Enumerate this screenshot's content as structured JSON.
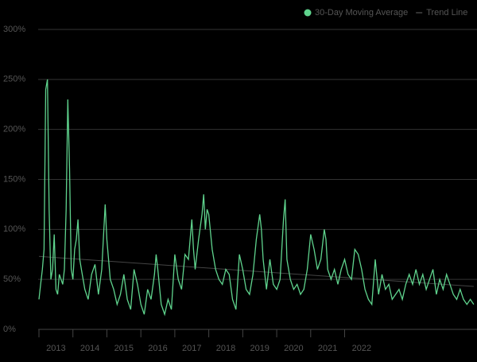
{
  "chart_data": {
    "type": "line",
    "x": [
      2013.0,
      2013.05,
      2013.1,
      2013.15,
      2013.2,
      2013.25,
      2013.3,
      2013.35,
      2013.4,
      2013.45,
      2013.5,
      2013.55,
      2013.6,
      2013.65,
      2013.7,
      2013.75,
      2013.8,
      2013.85,
      2013.9,
      2013.95,
      2014.0,
      2014.05,
      2014.1,
      2014.15,
      2014.2,
      2014.25,
      2014.35,
      2014.45,
      2014.55,
      2014.65,
      2014.75,
      2014.85,
      2014.95,
      2015.0,
      2015.1,
      2015.2,
      2015.3,
      2015.4,
      2015.5,
      2015.6,
      2015.7,
      2015.8,
      2015.9,
      2016.0,
      2016.1,
      2016.2,
      2016.3,
      2016.4,
      2016.45,
      2016.5,
      2016.6,
      2016.7,
      2016.8,
      2016.9,
      2017.0,
      2017.1,
      2017.2,
      2017.3,
      2017.4,
      2017.5,
      2017.55,
      2017.6,
      2017.7,
      2017.8,
      2017.85,
      2017.9,
      2017.95,
      2018.0,
      2018.1,
      2018.2,
      2018.3,
      2018.4,
      2018.5,
      2018.6,
      2018.7,
      2018.8,
      2018.9,
      2019.0,
      2019.1,
      2019.2,
      2019.3,
      2019.4,
      2019.5,
      2019.55,
      2019.6,
      2019.7,
      2019.8,
      2019.9,
      2020.0,
      2020.1,
      2020.2,
      2020.25,
      2020.3,
      2020.4,
      2020.5,
      2020.6,
      2020.7,
      2020.8,
      2020.9,
      2021.0,
      2021.1,
      2021.2,
      2021.3,
      2021.4,
      2021.45,
      2021.5,
      2021.6,
      2021.7,
      2021.8,
      2021.9,
      2022.0,
      2022.1,
      2022.2,
      2022.3,
      2022.4,
      2022.5,
      2022.6,
      2022.7,
      2022.8,
      2022.9,
      2023.0,
      2023.1,
      2023.2,
      2023.3,
      2023.4,
      2023.5,
      2023.6,
      2023.7,
      2023.8,
      2023.9,
      2024.0,
      2024.1,
      2024.2,
      2024.3,
      2024.4,
      2024.5,
      2024.6,
      2024.7,
      2024.8,
      2024.9,
      2025.0,
      2025.1,
      2025.2,
      2025.3,
      2025.4,
      2025.5,
      2025.6,
      2025.7,
      2025.8
    ],
    "series": [
      {
        "name": "30-Day Moving Average",
        "color": "#5fd38d",
        "values": [
          30,
          45,
          60,
          80,
          240,
          250,
          120,
          50,
          60,
          95,
          40,
          35,
          55,
          50,
          45,
          60,
          120,
          230,
          160,
          60,
          50,
          80,
          90,
          110,
          70,
          60,
          40,
          30,
          55,
          65,
          35,
          60,
          125,
          90,
          50,
          40,
          25,
          35,
          55,
          30,
          20,
          60,
          45,
          25,
          15,
          40,
          30,
          55,
          75,
          60,
          25,
          15,
          30,
          20,
          75,
          50,
          40,
          75,
          70,
          110,
          80,
          60,
          90,
          115,
          135,
          100,
          120,
          115,
          80,
          60,
          50,
          45,
          60,
          55,
          30,
          20,
          75,
          60,
          40,
          35,
          55,
          90,
          115,
          100,
          70,
          40,
          70,
          45,
          40,
          50,
          110,
          130,
          70,
          50,
          40,
          45,
          35,
          40,
          60,
          95,
          80,
          60,
          70,
          100,
          90,
          60,
          50,
          60,
          45,
          60,
          70,
          55,
          50,
          80,
          75,
          60,
          40,
          30,
          25,
          70,
          35,
          55,
          40,
          45,
          30,
          35,
          40,
          30,
          45,
          55,
          45,
          60,
          45,
          55,
          40,
          50,
          60,
          35,
          50,
          40,
          55,
          45,
          35,
          30,
          40,
          30,
          25,
          30,
          25
        ]
      },
      {
        "name": "Trend Line",
        "color": "#444444",
        "x": [
          2013.0,
          2025.8
        ],
        "values": [
          73,
          43
        ]
      }
    ],
    "xlim": [
      2013,
      2025.85
    ],
    "xticks": [
      2013,
      2014,
      2015,
      2016,
      2017,
      2018,
      2019,
      2020,
      2021,
      2022
    ],
    "ylim": [
      0,
      300
    ],
    "yticks": [
      {
        "value": 0,
        "label": "0%"
      },
      {
        "value": 50,
        "label": "50%"
      },
      {
        "value": 100,
        "label": "100%"
      },
      {
        "value": 150,
        "label": "150%"
      },
      {
        "value": 200,
        "label": "200%"
      },
      {
        "value": 250,
        "label": "250%"
      },
      {
        "value": 300,
        "label": "300%"
      }
    ],
    "grid": true,
    "legend": "top-right"
  }
}
